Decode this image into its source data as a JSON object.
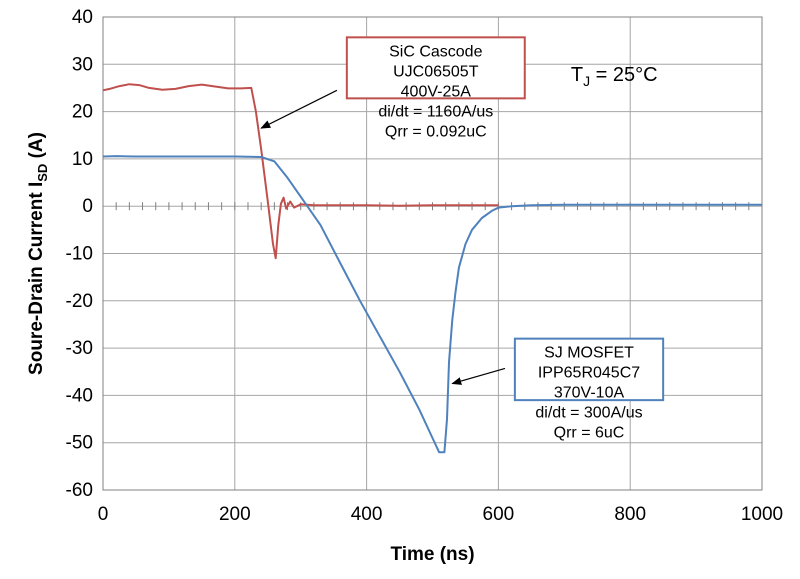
{
  "chart_data": {
    "type": "line",
    "xlabel": "Time (ns)",
    "ylabel_main": "Soure-Drain Current I",
    "ylabel_sub": "SD",
    "ylabel_unit": " (A)",
    "xlim": [
      0,
      1000
    ],
    "ylim": [
      -60,
      40
    ],
    "xticks": [
      0,
      200,
      400,
      600,
      800,
      1000
    ],
    "yticks": [
      -60,
      -50,
      -40,
      -30,
      -20,
      -10,
      0,
      10,
      20,
      30,
      40
    ],
    "grid": true,
    "temperature_label": {
      "main": "T",
      "sub": "J",
      "rest": " = 25°C"
    },
    "colors": {
      "sic": "#c0504d",
      "sj": "#4f81bd",
      "qrr": "#ff0000"
    },
    "series": [
      {
        "id": "sic",
        "x": [
          0,
          10,
          25,
          40,
          55,
          70,
          90,
          110,
          130,
          150,
          170,
          190,
          210,
          225,
          232,
          240,
          250,
          258,
          262,
          266,
          270,
          274,
          278,
          284,
          290,
          300,
          320,
          350,
          400,
          450,
          500,
          550,
          600
        ],
        "y": [
          24.5,
          24.8,
          25.4,
          25.8,
          25.6,
          25.0,
          24.6,
          24.8,
          25.4,
          25.7,
          25.3,
          24.9,
          24.9,
          25.0,
          20,
          12,
          1,
          -8,
          -11,
          -4,
          0.5,
          1.8,
          -0.5,
          1,
          -0.3,
          0.4,
          0.2,
          0.2,
          0.2,
          0.1,
          0.2,
          0.2,
          0.2
        ]
      },
      {
        "id": "sj",
        "x": [
          0,
          20,
          50,
          100,
          150,
          200,
          240,
          260,
          280,
          300,
          330,
          360,
          390,
          420,
          450,
          480,
          500,
          510,
          518,
          522,
          525,
          530,
          535,
          540,
          550,
          560,
          575,
          590,
          600,
          620,
          650,
          700,
          800,
          900,
          1000
        ],
        "y": [
          10.5,
          10.6,
          10.5,
          10.5,
          10.5,
          10.5,
          10.4,
          9.5,
          6,
          2,
          -4,
          -12,
          -20,
          -27.5,
          -35,
          -43,
          -49,
          -52,
          -52,
          -45,
          -33,
          -24,
          -18,
          -13,
          -8,
          -5,
          -2.5,
          -1,
          -0.3,
          0,
          0.2,
          0.3,
          0.3,
          0.3,
          0.3
        ]
      }
    ],
    "annotations": [
      {
        "id": "sic",
        "lines": [
          "SiC Cascode",
          "UJC06505T",
          "400V-25A",
          "di/dt = 1160A/us"
        ],
        "qrr": "Qrr = 0.092uC",
        "box_x": [
          370,
          640
        ],
        "box_y": [
          35.7,
          22.8
        ],
        "arrow_from": [
          355,
          24.5
        ],
        "arrow_to": [
          240,
          16.5
        ]
      },
      {
        "id": "sj",
        "lines": [
          "SJ MOSFET",
          "IPP65R045C7",
          "370V-10A",
          "di/dt = 300A/us"
        ],
        "qrr": "Qrr = 6uC",
        "box_x": [
          625,
          850
        ],
        "box_y": [
          -28.0,
          -41.0
        ],
        "arrow_from": [
          610,
          -34.3
        ],
        "arrow_to": [
          530,
          -37.5
        ]
      }
    ]
  }
}
